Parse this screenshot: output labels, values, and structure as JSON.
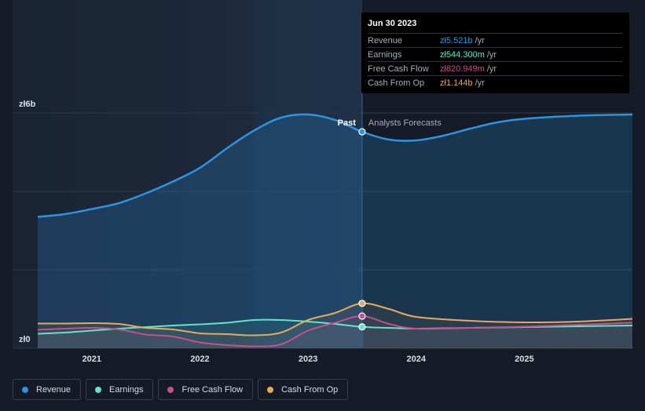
{
  "chart_data": {
    "type": "area",
    "y_axis": {
      "top_label": "zł6b",
      "bottom_label": "zł0",
      "ylim": [
        0,
        6
      ]
    },
    "x_axis": {
      "ticks": [
        "2021",
        "2022",
        "2023",
        "2024",
        "2025"
      ],
      "xlim": [
        2020.5,
        2026.0
      ]
    },
    "regions": {
      "past_label": "Past",
      "forecast_label": "Analysts Forecasts",
      "split_x": 2023.5
    },
    "series": [
      {
        "name": "Revenue",
        "color": "#2e93e0",
        "points": [
          [
            2020.5,
            3.35
          ],
          [
            2020.75,
            3.42
          ],
          [
            2021.0,
            3.55
          ],
          [
            2021.25,
            3.7
          ],
          [
            2021.5,
            3.95
          ],
          [
            2021.75,
            4.25
          ],
          [
            2022.0,
            4.6
          ],
          [
            2022.25,
            5.1
          ],
          [
            2022.5,
            5.55
          ],
          [
            2022.75,
            5.88
          ],
          [
            2023.0,
            5.96
          ],
          [
            2023.25,
            5.82
          ],
          [
            2023.5,
            5.52
          ],
          [
            2023.75,
            5.32
          ],
          [
            2024.0,
            5.3
          ],
          [
            2024.25,
            5.42
          ],
          [
            2024.5,
            5.6
          ],
          [
            2024.75,
            5.76
          ],
          [
            2025.0,
            5.85
          ],
          [
            2025.5,
            5.93
          ],
          [
            2026.0,
            5.96
          ]
        ]
      },
      {
        "name": "Earnings",
        "color": "#5ee6c8",
        "points": [
          [
            2020.5,
            0.37
          ],
          [
            2020.75,
            0.4
          ],
          [
            2021.0,
            0.45
          ],
          [
            2021.25,
            0.5
          ],
          [
            2021.5,
            0.54
          ],
          [
            2021.75,
            0.58
          ],
          [
            2022.0,
            0.61
          ],
          [
            2022.25,
            0.65
          ],
          [
            2022.5,
            0.72
          ],
          [
            2022.75,
            0.72
          ],
          [
            2023.0,
            0.68
          ],
          [
            2023.25,
            0.62
          ],
          [
            2023.5,
            0.544
          ],
          [
            2023.75,
            0.52
          ],
          [
            2024.0,
            0.5
          ],
          [
            2024.5,
            0.52
          ],
          [
            2025.0,
            0.54
          ],
          [
            2025.5,
            0.56
          ],
          [
            2026.0,
            0.58
          ]
        ]
      },
      {
        "name": "Free Cash Flow",
        "color": "#c8508a",
        "points": [
          [
            2020.5,
            0.47
          ],
          [
            2020.75,
            0.5
          ],
          [
            2021.0,
            0.52
          ],
          [
            2021.25,
            0.48
          ],
          [
            2021.5,
            0.35
          ],
          [
            2021.75,
            0.3
          ],
          [
            2022.0,
            0.15
          ],
          [
            2022.25,
            0.08
          ],
          [
            2022.5,
            0.05
          ],
          [
            2022.75,
            0.1
          ],
          [
            2023.0,
            0.45
          ],
          [
            2023.25,
            0.65
          ],
          [
            2023.5,
            0.82
          ],
          [
            2023.75,
            0.62
          ],
          [
            2024.0,
            0.5
          ],
          [
            2024.5,
            0.52
          ],
          [
            2025.0,
            0.55
          ],
          [
            2025.5,
            0.6
          ],
          [
            2026.0,
            0.65
          ]
        ]
      },
      {
        "name": "Cash From Op",
        "color": "#e8a95c",
        "points": [
          [
            2020.5,
            0.63
          ],
          [
            2020.75,
            0.63
          ],
          [
            2021.0,
            0.64
          ],
          [
            2021.25,
            0.62
          ],
          [
            2021.5,
            0.52
          ],
          [
            2021.75,
            0.48
          ],
          [
            2022.0,
            0.38
          ],
          [
            2022.25,
            0.36
          ],
          [
            2022.5,
            0.33
          ],
          [
            2022.75,
            0.4
          ],
          [
            2023.0,
            0.72
          ],
          [
            2023.25,
            0.9
          ],
          [
            2023.5,
            1.144
          ],
          [
            2023.75,
            1.0
          ],
          [
            2024.0,
            0.8
          ],
          [
            2024.5,
            0.7
          ],
          [
            2025.0,
            0.66
          ],
          [
            2025.5,
            0.68
          ],
          [
            2026.0,
            0.75
          ]
        ]
      }
    ],
    "highlight": {
      "x": 2023.5,
      "values": [
        5.521,
        0.5443,
        0.820949,
        1.144
      ]
    }
  },
  "tooltip": {
    "date": "Jun 30 2023",
    "rows": [
      {
        "name": "Revenue",
        "value": "zł5.521b",
        "unit": "/yr",
        "color": "#2e93e0"
      },
      {
        "name": "Earnings",
        "value": "zł544.300m",
        "unit": "/yr",
        "color": "#5ee6c8"
      },
      {
        "name": "Free Cash Flow",
        "value": "zł820.949m",
        "unit": "/yr",
        "color": "#c8508a"
      },
      {
        "name": "Cash From Op",
        "value": "zł1.144b",
        "unit": "/yr",
        "color": "#e8a95c"
      }
    ]
  },
  "legend": [
    {
      "label": "Revenue",
      "color": "#2e93e0"
    },
    {
      "label": "Earnings",
      "color": "#5ee6c8"
    },
    {
      "label": "Free Cash Flow",
      "color": "#c8508a"
    },
    {
      "label": "Cash From Op",
      "color": "#e8a95c"
    }
  ]
}
